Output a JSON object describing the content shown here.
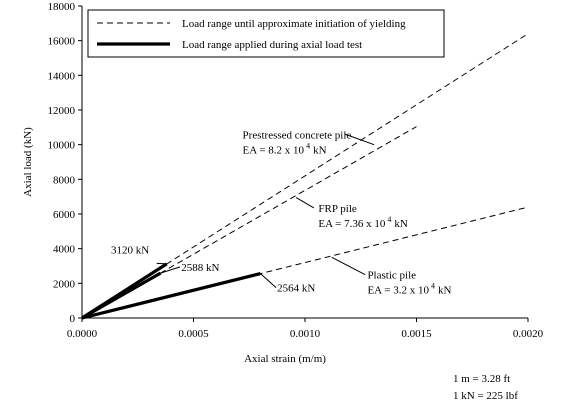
{
  "chart_data": {
    "type": "line",
    "xlabel": "Axial strain (m/m)",
    "ylabel": "Axial load (kN)",
    "xlim": [
      0,
      0.002
    ],
    "ylim": [
      0,
      18000
    ],
    "x_ticks": [
      "0.0000",
      "0.0005",
      "0.0010",
      "0.0015",
      "0.0020"
    ],
    "x_tick_values": [
      0,
      0.0005,
      0.001,
      0.0015,
      0.002
    ],
    "y_ticks": [
      "0",
      "2000",
      "4000",
      "6000",
      "8000",
      "10000",
      "12000",
      "14000",
      "16000",
      "18000"
    ],
    "y_tick_values": [
      0,
      2000,
      4000,
      6000,
      8000,
      10000,
      12000,
      14000,
      16000,
      18000
    ],
    "grid": false,
    "legend_position": "top-left",
    "legend": [
      {
        "label": "Load range until approximate initiation of yielding",
        "style": "dashed"
      },
      {
        "label": "Load range applied during axial load test",
        "style": "solid-thick"
      }
    ],
    "series": [
      {
        "name": "Prestressed concrete pile",
        "style": "dashed",
        "x": [
          0,
          0.002
        ],
        "y": [
          0,
          16400
        ]
      },
      {
        "name": "Prestressed concrete pile",
        "style": "solid-thick",
        "x": [
          0,
          0.00038
        ],
        "y": [
          0,
          3120
        ]
      },
      {
        "name": "FRP pile",
        "style": "dashed",
        "x": [
          0,
          0.0015
        ],
        "y": [
          0,
          11040
        ]
      },
      {
        "name": "FRP pile",
        "style": "solid-thick",
        "x": [
          0,
          0.000352
        ],
        "y": [
          0,
          2588
        ]
      },
      {
        "name": "Plastic pile",
        "style": "dashed",
        "x": [
          0,
          0.002
        ],
        "y": [
          0,
          6400
        ]
      },
      {
        "name": "Plastic pile",
        "style": "solid-thick",
        "x": [
          0,
          0.0008
        ],
        "y": [
          0,
          2564
        ]
      }
    ],
    "annotations": [
      {
        "lines": [
          "Prestressed concrete pile",
          "EA = 8.2 x 10",
          "kN"
        ],
        "sup": "4",
        "text_x": 0.00072,
        "text_y": 10600,
        "pointer": [
          [
            0.00118,
            10600
          ],
          [
            0.00131,
            10000
          ]
        ]
      },
      {
        "lines": [
          "FRP pile",
          "EA = 7.36 x 10",
          "kN"
        ],
        "sup": "4",
        "text_x": 0.00106,
        "text_y": 6350,
        "pointer": [
          [
            0.00104,
            6350
          ],
          [
            0.00096,
            6950
          ]
        ]
      },
      {
        "lines": [
          "Plastic pile",
          "EA = 3.2 x 10",
          "kN"
        ],
        "sup": "4",
        "text_x": 0.00128,
        "text_y": 2500,
        "pointer": [
          [
            0.00127,
            2500
          ],
          [
            0.00112,
            3500
          ]
        ]
      },
      {
        "lines": [
          "3120 kN"
        ],
        "text_x": 0.00013,
        "text_y": 3950,
        "pointer": [
          [
            0.000335,
            3150
          ],
          [
            0.00038,
            3120
          ]
        ]
      },
      {
        "lines": [
          "2588 kN"
        ],
        "text_x": 0.000445,
        "text_y": 2950,
        "pointer": [
          [
            0.00044,
            2950
          ],
          [
            0.000352,
            2588
          ]
        ]
      },
      {
        "lines": [
          "2564 kN"
        ],
        "text_x": 0.000875,
        "text_y": 1750,
        "pointer": [
          [
            0.00087,
            1750
          ],
          [
            0.0008,
            2564
          ]
        ]
      }
    ],
    "notes": [
      "1 m = 3.28 ft",
      "1 kN = 225 lbf"
    ]
  }
}
